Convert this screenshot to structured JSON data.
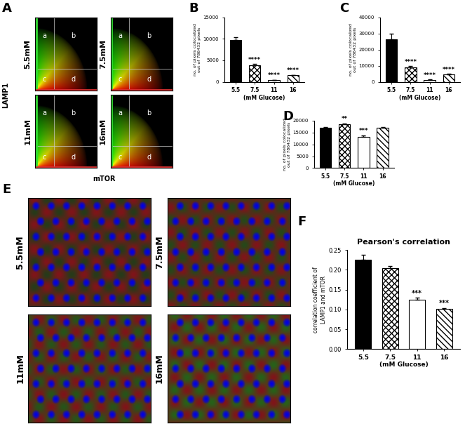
{
  "chart_data": [
    {
      "panel": "A",
      "type": "colocalization",
      "xlabel": "mTOR",
      "ylabel": "LAMP1",
      "titles": [
        "5.5mM",
        "7.5mM",
        "11mM",
        "16mM"
      ],
      "regions": [
        "a",
        "b",
        "c",
        "d"
      ],
      "tick_labels": false
    },
    {
      "panel": "B",
      "type": "bar",
      "categories": [
        "5.5",
        "7.5",
        "11",
        "16"
      ],
      "values": [
        9700,
        3900,
        400,
        1500
      ],
      "errors": [
        700,
        250,
        80,
        150
      ],
      "significance": [
        null,
        "****",
        "****",
        "****"
      ],
      "colors": [
        "#000000",
        "#ffffff",
        "#ffffff",
        "#ffffff"
      ],
      "xlabel": "(mM Glucose)",
      "ylabel": "no. of pixels colocalized\nout of 786432 pixels",
      "ylim": [
        0,
        15000
      ],
      "yticks": [
        0,
        5000,
        10000,
        15000
      ]
    },
    {
      "panel": "C",
      "type": "bar",
      "categories": [
        "5.5",
        "7.5",
        "11",
        "16"
      ],
      "values": [
        26500,
        9000,
        1200,
        4600
      ],
      "errors": [
        3300,
        800,
        200,
        300
      ],
      "significance": [
        null,
        "****",
        "****",
        "****"
      ],
      "colors": [
        "#000000",
        "#ffffff",
        "#ffffff",
        "#ffffff"
      ],
      "xlabel": "(mM Glucose)",
      "ylabel": "no. of pixels colocalized\nout of 786432 pixels",
      "ylim": [
        0,
        40000
      ],
      "yticks": [
        0,
        10000,
        20000,
        30000,
        40000
      ]
    },
    {
      "panel": "D",
      "type": "bar",
      "categories": [
        "5.5",
        "7.5",
        "11",
        "16"
      ],
      "values": [
        16900,
        18600,
        13200,
        16900
      ],
      "errors": [
        300,
        250,
        700,
        300
      ],
      "significance": [
        null,
        "**",
        "***",
        null
      ],
      "colors": [
        "#000000",
        "#ffffff",
        "#ffffff",
        "#ffffff"
      ],
      "xlabel": "(mM Glucose)",
      "ylabel": "no. of pixels colocalized\nout of 786432 pixels",
      "ylim": [
        0,
        20000
      ],
      "yticks": [
        0,
        5000,
        10000,
        15000,
        20000
      ]
    },
    {
      "panel": "E",
      "type": "image",
      "titles": [
        "5.5mM",
        "7.5mM",
        "11mM",
        "16mM"
      ],
      "tick_labels": false
    },
    {
      "panel": "F",
      "type": "bar",
      "title": "Pearson's correlation",
      "categories": [
        "5.5",
        "7.5",
        "11",
        "16"
      ],
      "values": [
        0.225,
        0.204,
        0.125,
        0.101
      ],
      "errors": [
        0.012,
        0.005,
        0.005,
        0.003
      ],
      "significance": [
        null,
        null,
        "***",
        "***"
      ],
      "colors": [
        "#000000",
        "#ffffff",
        "#ffffff",
        "#ffffff"
      ],
      "xlabel": "(mM Glucose)",
      "ylabel": "correlation coefficient of\nLAMP1 and mTOR",
      "ylim": [
        0,
        0.25
      ],
      "yticks": [
        {
          "value": 0,
          "label": "0.00"
        },
        {
          "value": 0.05,
          "label": "0.05"
        },
        {
          "value": 0.1,
          "label": "0.10"
        },
        {
          "value": 0.15,
          "label": "0.15"
        },
        {
          "value": 0.2,
          "label": "0.20"
        },
        {
          "value": 0.25,
          "label": "0.25"
        }
      ]
    }
  ]
}
